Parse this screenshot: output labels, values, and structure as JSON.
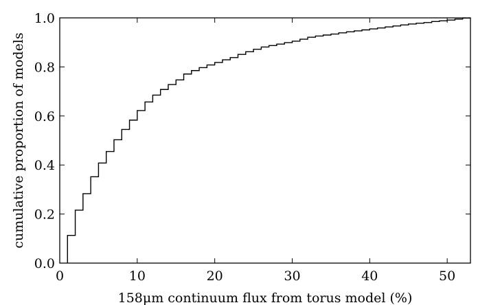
{
  "chart_data": {
    "type": "line",
    "title": "",
    "xlabel": "158μm continuum flux from torus model (%)",
    "ylabel": "cumulative proportion of models",
    "xlim": [
      0,
      53
    ],
    "ylim": [
      0.0,
      1.0
    ],
    "grid": false,
    "legend": "none",
    "xticks": [
      0,
      10,
      20,
      30,
      40,
      50
    ],
    "xtick_labels": [
      "0",
      "10",
      "20",
      "30",
      "40",
      "50"
    ],
    "yticks": [
      0.0,
      0.2,
      0.4,
      0.6,
      0.8,
      1.0
    ],
    "ytick_labels": [
      "0.0",
      "0.2",
      "0.4",
      "0.6",
      "0.8",
      "1.0"
    ],
    "series": [
      {
        "style": "step-post",
        "color": "#000000",
        "x": [
          1,
          2,
          3,
          4,
          5,
          6,
          7,
          8,
          9,
          10,
          11,
          12,
          13,
          14,
          15,
          16,
          17,
          18,
          19,
          20,
          21,
          22,
          23,
          24,
          25,
          26,
          27,
          28,
          29,
          30,
          31,
          32,
          33,
          34,
          35,
          36,
          37,
          38,
          39,
          40,
          41,
          42,
          43,
          44,
          45,
          46,
          47,
          48,
          49,
          50,
          51,
          52,
          53
        ],
        "y": [
          0.113,
          0.216,
          0.283,
          0.352,
          0.408,
          0.455,
          0.503,
          0.545,
          0.583,
          0.622,
          0.657,
          0.685,
          0.708,
          0.728,
          0.747,
          0.771,
          0.785,
          0.797,
          0.808,
          0.818,
          0.829,
          0.838,
          0.851,
          0.862,
          0.872,
          0.881,
          0.887,
          0.893,
          0.899,
          0.905,
          0.913,
          0.921,
          0.926,
          0.93,
          0.934,
          0.939,
          0.943,
          0.947,
          0.951,
          0.955,
          0.959,
          0.963,
          0.967,
          0.971,
          0.975,
          0.978,
          0.981,
          0.985,
          0.988,
          0.991,
          0.995,
          0.999,
          1.0
        ]
      }
    ]
  }
}
